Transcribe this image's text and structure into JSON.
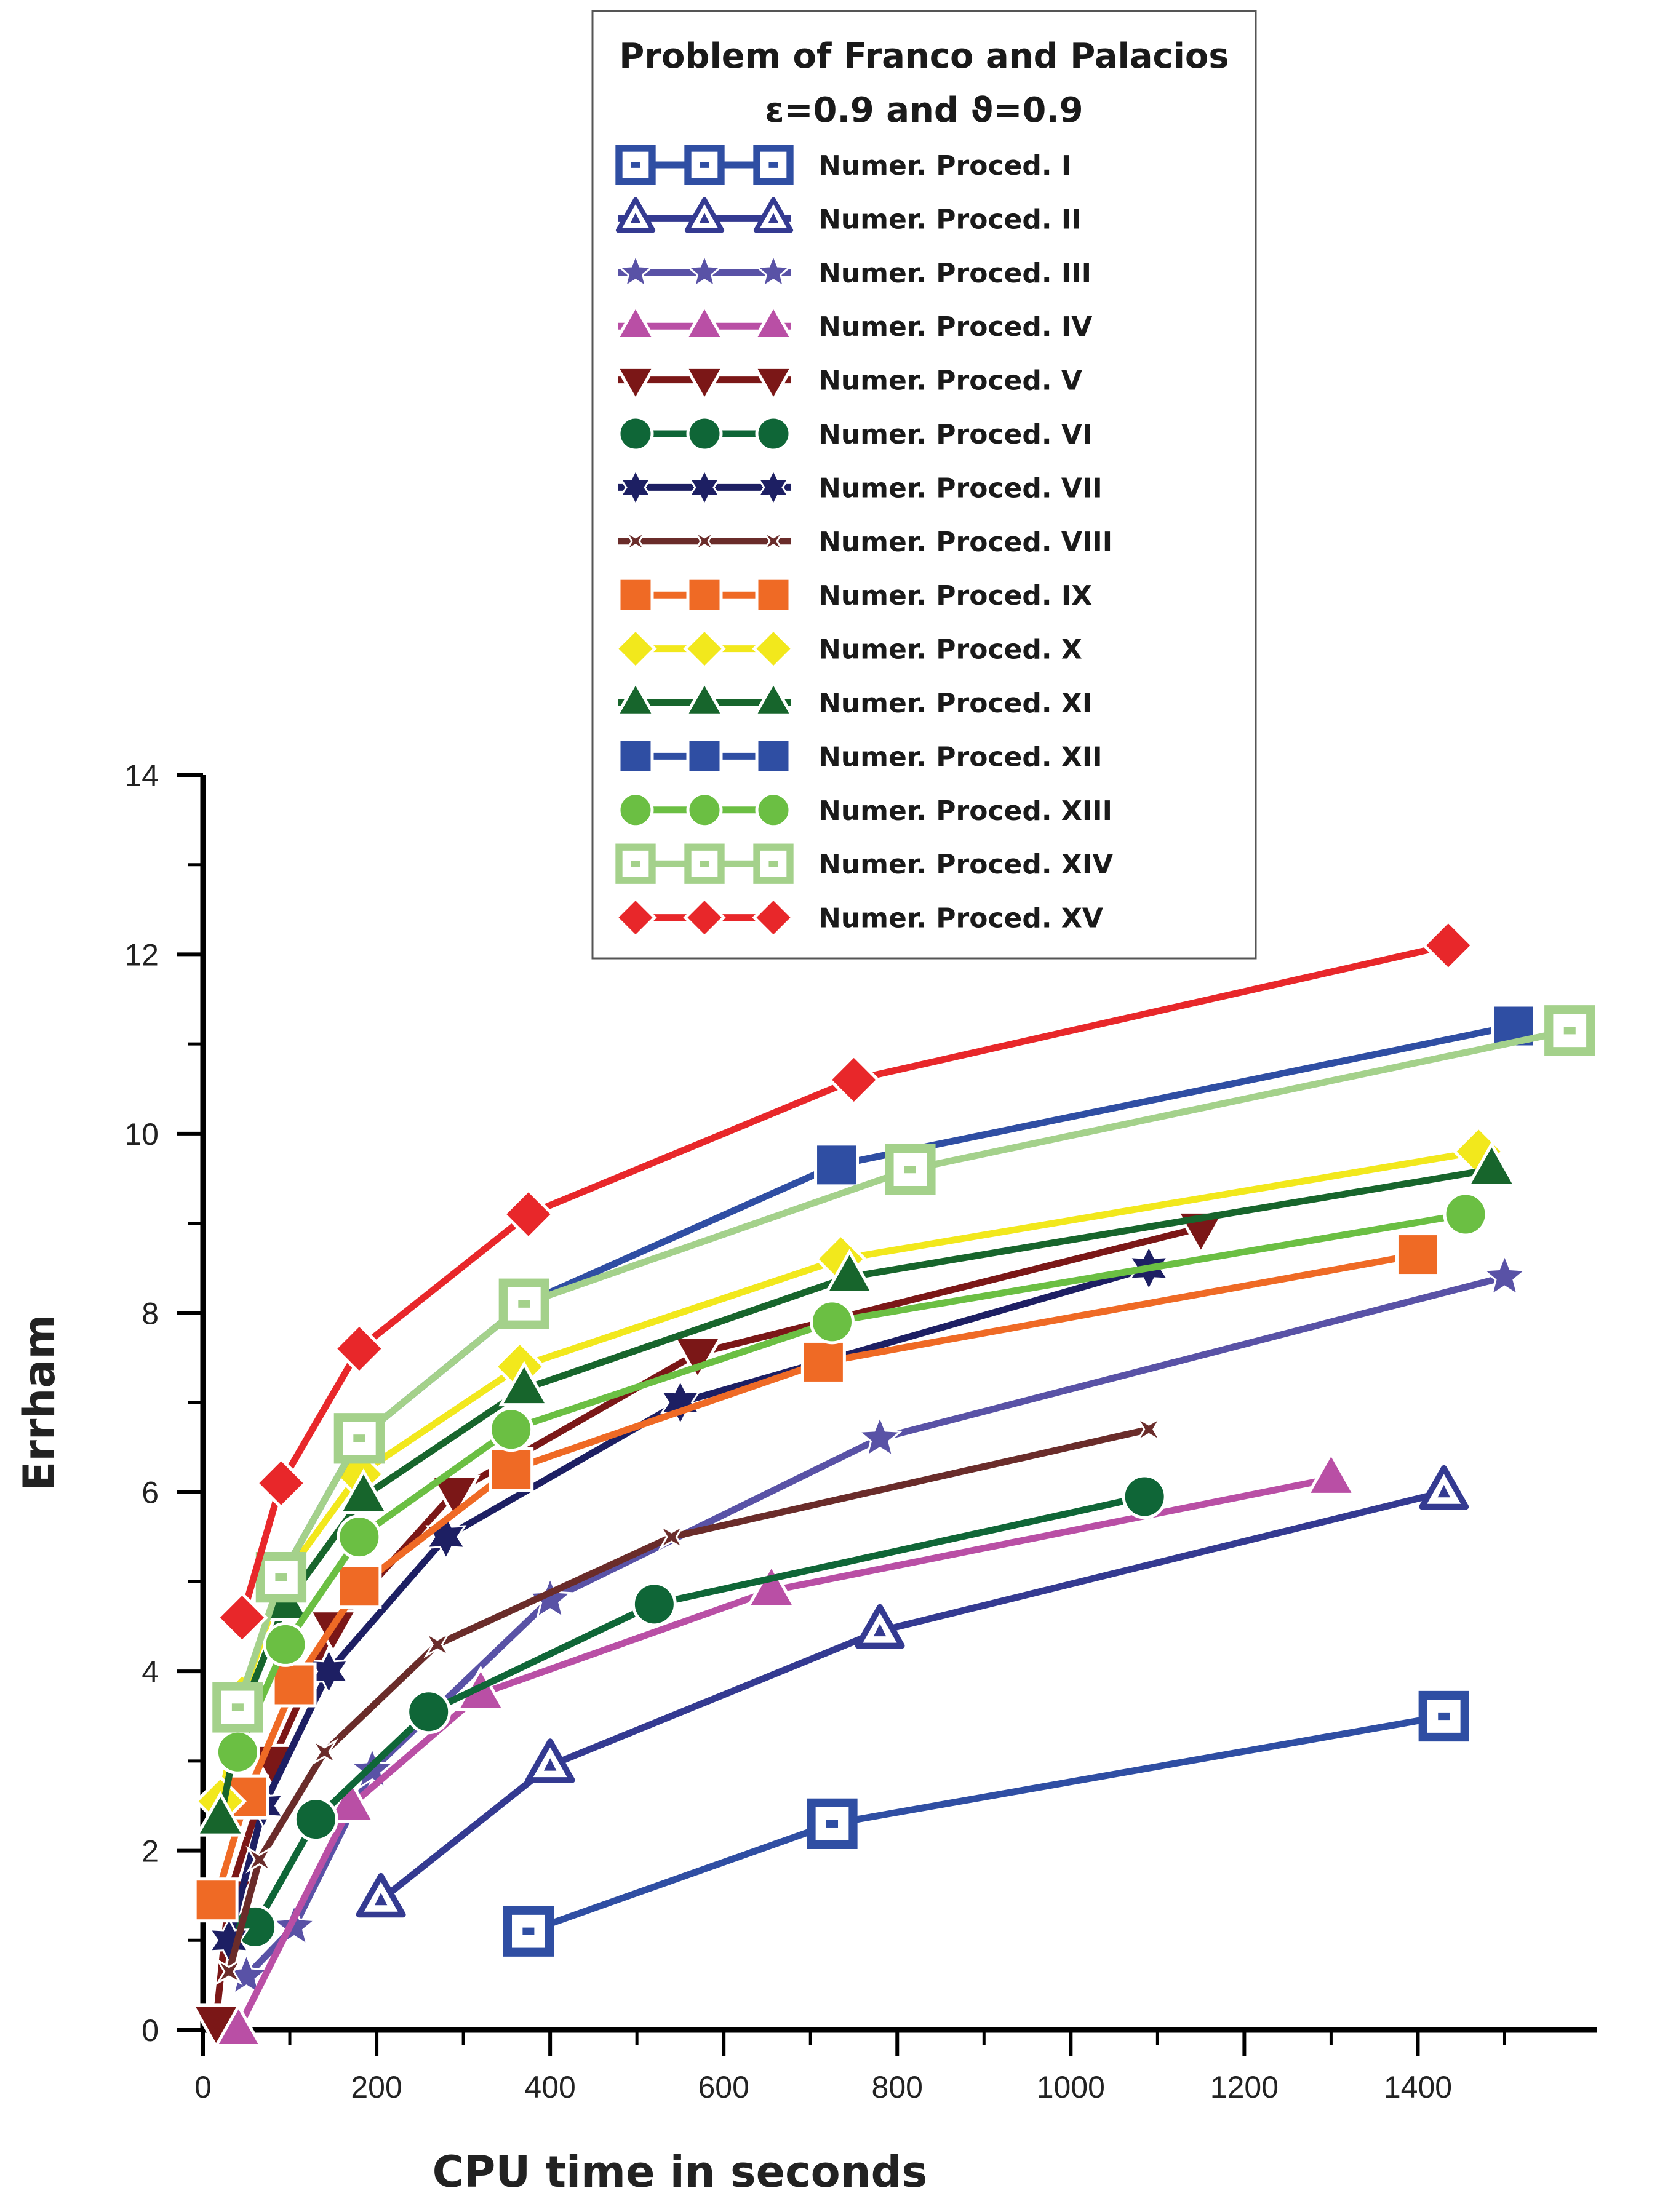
{
  "chart_data": {
    "type": "line",
    "title": "Problem of Franco and Palacios",
    "subtitle": "ε=0.9 and ϑ=0.9",
    "xlabel": "CPU time in seconds",
    "ylabel": "Errham",
    "xlim": [
      0,
      1550
    ],
    "ylim": [
      0,
      14
    ],
    "xticks": [
      0,
      200,
      400,
      600,
      800,
      1000,
      1200,
      1400
    ],
    "yticks": [
      0,
      2,
      4,
      6,
      8,
      10,
      12,
      14
    ],
    "legend_position": "top-center",
    "series": [
      {
        "name": "Numer. Proced. I",
        "color": "#2f4ea3",
        "marker": "square-dot-open",
        "x": [
          375,
          725,
          1430
        ],
        "y": [
          1.1,
          2.3,
          3.5
        ]
      },
      {
        "name": "Numer. Proced. II",
        "color": "#343a91",
        "marker": "triangle-open",
        "x": [
          205,
          400,
          780,
          1430
        ],
        "y": [
          1.45,
          2.95,
          4.45,
          6.0
        ]
      },
      {
        "name": "Numer. Proced. III",
        "color": "#5952a6",
        "marker": "star5",
        "x": [
          50,
          105,
          195,
          400,
          780,
          1500
        ],
        "y": [
          0.6,
          1.15,
          2.9,
          4.8,
          6.6,
          8.4
        ]
      },
      {
        "name": "Numer. Proced. IV",
        "color": "#b94fa5",
        "marker": "triangle",
        "x": [
          40,
          170,
          320,
          655,
          1300
        ],
        "y": [
          0.0,
          2.5,
          3.75,
          4.9,
          6.15
        ]
      },
      {
        "name": "Numer. Proced. V",
        "color": "#7b1717",
        "marker": "triangle-down",
        "x": [
          15,
          30,
          80,
          150,
          290,
          570,
          1150
        ],
        "y": [
          0.1,
          1.5,
          3.0,
          4.5,
          6.0,
          7.55,
          8.95
        ]
      },
      {
        "name": "Numer. Proced. VI",
        "color": "#0f6637",
        "marker": "circle",
        "x": [
          60,
          130,
          260,
          520,
          1085
        ],
        "y": [
          1.15,
          2.35,
          3.55,
          4.75,
          5.95
        ]
      },
      {
        "name": "Numer. Proced. VII",
        "color": "#1d1f63",
        "marker": "star6",
        "x": [
          30,
          70,
          145,
          280,
          550,
          1090
        ],
        "y": [
          1.0,
          2.5,
          4.0,
          5.5,
          7.0,
          8.5
        ]
      },
      {
        "name": "Numer. Proced. VIII",
        "color": "#6a2c2a",
        "marker": "star4",
        "x": [
          30,
          65,
          140,
          270,
          540,
          1090
        ],
        "y": [
          0.65,
          1.9,
          3.1,
          4.3,
          5.5,
          6.7
        ]
      },
      {
        "name": "Numer. Proced. IX",
        "color": "#ef6a25",
        "marker": "square",
        "x": [
          15,
          50,
          105,
          180,
          355,
          715,
          1400
        ],
        "y": [
          1.45,
          2.6,
          3.85,
          4.95,
          6.25,
          7.45,
          8.65
        ]
      },
      {
        "name": "Numer. Proced. X",
        "color": "#f2e81c",
        "marker": "diamond",
        "x": [
          20,
          45,
          90,
          180,
          365,
          735,
          1470
        ],
        "y": [
          2.55,
          3.7,
          5.0,
          6.2,
          7.4,
          8.6,
          9.8
        ]
      },
      {
        "name": "Numer. Proced. XI",
        "color": "#17652c",
        "marker": "triangle",
        "x": [
          20,
          45,
          95,
          185,
          370,
          745,
          1485
        ],
        "y": [
          2.35,
          3.55,
          4.75,
          5.95,
          7.15,
          8.4,
          9.6
        ]
      },
      {
        "name": "Numer. Proced. XII",
        "color": "#2f4ea3",
        "marker": "square",
        "x": [
          90,
          180,
          370,
          730,
          1510
        ],
        "y": [
          5.05,
          6.6,
          8.1,
          9.65,
          11.2
        ]
      },
      {
        "name": "Numer. Proced. XIII",
        "color": "#6bbf43",
        "marker": "circle",
        "x": [
          40,
          95,
          180,
          355,
          725,
          1455
        ],
        "y": [
          3.1,
          4.3,
          5.5,
          6.7,
          7.9,
          9.1
        ]
      },
      {
        "name": "Numer. Proced. XIV",
        "color": "#a4d18b",
        "marker": "square-dot-open",
        "x": [
          40,
          90,
          180,
          370,
          815,
          1575
        ],
        "y": [
          3.6,
          5.05,
          6.6,
          8.1,
          9.6,
          11.15
        ]
      },
      {
        "name": "Numer. Proced. XV",
        "color": "#e8272a",
        "marker": "diamond",
        "x": [
          45,
          90,
          180,
          375,
          750,
          1435
        ],
        "y": [
          4.6,
          6.1,
          7.6,
          9.1,
          10.6,
          12.1
        ]
      }
    ]
  }
}
